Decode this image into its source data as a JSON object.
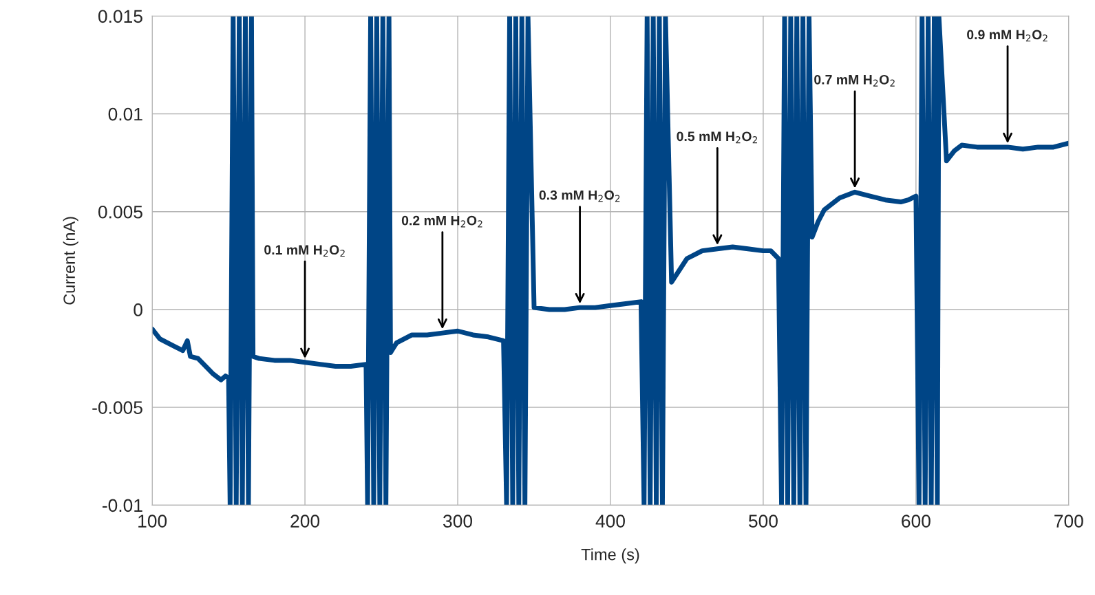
{
  "chart_data": {
    "type": "line",
    "xlabel": "Time (s)",
    "ylabel": "Current (nA)",
    "xlim": [
      100,
      700
    ],
    "xticks": [
      100,
      200,
      300,
      400,
      500,
      600,
      700
    ],
    "ylim": [
      -0.01,
      0.015
    ],
    "yticks": [
      {
        "value": -0.01,
        "label": "-0.01"
      },
      {
        "value": -0.005,
        "label": "-0.005"
      },
      0,
      0.005,
      0.01,
      0.015
    ],
    "grid": true,
    "line_style": "solid",
    "series": [
      {
        "color": "#004586",
        "x": [
          100,
          105,
          110,
          120,
          123,
          125,
          130,
          140,
          145,
          148,
          150,
          151,
          153,
          155,
          157,
          159,
          161,
          163,
          165,
          166,
          170,
          180,
          190,
          200,
          210,
          220,
          230,
          240,
          241,
          243,
          245,
          247,
          249,
          251,
          253,
          255,
          256,
          260,
          270,
          280,
          290,
          300,
          310,
          320,
          330,
          332,
          334,
          336,
          338,
          340,
          342,
          344,
          346,
          350,
          360,
          370,
          380,
          390,
          400,
          410,
          420,
          422,
          424,
          426,
          428,
          430,
          432,
          434,
          436,
          440,
          445,
          450,
          460,
          470,
          480,
          490,
          500,
          505,
          510,
          512,
          514,
          516,
          518,
          520,
          522,
          524,
          526,
          528,
          530,
          532,
          536,
          540,
          550,
          560,
          570,
          580,
          590,
          595,
          600,
          602,
          604,
          606,
          608,
          610,
          612,
          614,
          615,
          620,
          625,
          630,
          640,
          650,
          660,
          670,
          680,
          690,
          700
        ],
        "values": [
          -0.001,
          -0.0015,
          -0.0017,
          -0.0021,
          -0.0016,
          -0.0024,
          -0.0025,
          -0.0033,
          -0.0036,
          -0.0034,
          -0.0035,
          -0.01,
          0.015,
          -0.01,
          0.015,
          -0.01,
          0.015,
          -0.01,
          0.015,
          -0.0024,
          -0.0025,
          -0.0026,
          -0.0026,
          -0.0027,
          -0.0028,
          -0.0029,
          -0.0029,
          -0.0028,
          -0.01,
          0.015,
          -0.01,
          0.015,
          -0.01,
          0.015,
          -0.01,
          0.015,
          -0.0022,
          -0.0017,
          -0.0013,
          -0.0013,
          -0.0012,
          -0.0011,
          -0.0013,
          -0.0014,
          -0.0016,
          -0.01,
          0.015,
          -0.01,
          0.015,
          -0.01,
          0.015,
          -0.01,
          0.015,
          0.0001,
          0.0,
          0.0,
          0.0001,
          0.0001,
          0.0002,
          0.0003,
          0.0004,
          -0.01,
          0.015,
          -0.01,
          0.015,
          -0.01,
          0.015,
          -0.01,
          0.015,
          0.0014,
          0.002,
          0.0026,
          0.003,
          0.0031,
          0.0032,
          0.0031,
          0.003,
          0.003,
          0.0026,
          -0.01,
          0.015,
          -0.01,
          0.015,
          -0.01,
          0.015,
          -0.01,
          0.015,
          -0.01,
          0.015,
          0.0037,
          0.0045,
          0.0051,
          0.0057,
          0.006,
          0.0058,
          0.0056,
          0.0055,
          0.0056,
          0.0058,
          -0.01,
          0.015,
          -0.01,
          0.015,
          -0.01,
          0.015,
          -0.01,
          0.015,
          0.0076,
          0.0081,
          0.0084,
          0.0083,
          0.0083,
          0.0083,
          0.0082,
          0.0083,
          0.0083,
          0.0085
        ]
      }
    ],
    "annotations": [
      {
        "text": "0.1 mM H$_{2}$O$_{2}$",
        "x": 200,
        "y": -0.0027
      },
      {
        "text": "0.2 mM H$_{2}$O$_{2}$",
        "x": 290,
        "y": -0.0012
      },
      {
        "text": "0.3 mM H$_{2}$O$_{2}$",
        "x": 380,
        "y": 0.0001
      },
      {
        "text": "0.5 mM H$_{2}$O$_{2}$",
        "x": 470,
        "y": 0.0031
      },
      {
        "text": "0.7 mM H$_{2}$O$_{2}$",
        "x": 560,
        "y": 0.006
      },
      {
        "text": "0.9 mM H$_{2}$O$_{2}$",
        "x": 660,
        "y": 0.0083
      }
    ]
  }
}
